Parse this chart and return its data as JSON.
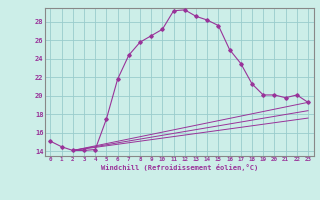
{
  "xlabel": "Windchill (Refroidissement éolien,°C)",
  "bg_color": "#cceee8",
  "line_color": "#993399",
  "grid_color": "#99cccc",
  "spine_color": "#888888",
  "xlim": [
    -0.5,
    23.5
  ],
  "ylim": [
    13.5,
    29.5
  ],
  "yticks": [
    14,
    16,
    18,
    20,
    22,
    24,
    26,
    28
  ],
  "xticks": [
    0,
    1,
    2,
    3,
    4,
    5,
    6,
    7,
    8,
    9,
    10,
    11,
    12,
    13,
    14,
    15,
    16,
    17,
    18,
    19,
    20,
    21,
    22,
    23
  ],
  "main_curve": [
    [
      0,
      15.1
    ],
    [
      1,
      14.5
    ],
    [
      2,
      14.1
    ],
    [
      3,
      14.1
    ],
    [
      4,
      14.2
    ],
    [
      5,
      17.5
    ],
    [
      6,
      21.8
    ],
    [
      7,
      24.4
    ],
    [
      8,
      25.8
    ],
    [
      9,
      26.5
    ],
    [
      10,
      27.2
    ],
    [
      11,
      29.2
    ],
    [
      12,
      29.3
    ],
    [
      13,
      28.6
    ],
    [
      14,
      28.2
    ],
    [
      15,
      27.6
    ],
    [
      16,
      25.0
    ],
    [
      17,
      23.5
    ],
    [
      18,
      21.3
    ],
    [
      19,
      20.1
    ],
    [
      20,
      20.1
    ],
    [
      21,
      19.8
    ],
    [
      22,
      20.1
    ],
    [
      23,
      19.3
    ]
  ],
  "diag_lines": [
    [
      [
        2,
        14.1
      ],
      [
        23,
        19.3
      ]
    ],
    [
      [
        2,
        14.1
      ],
      [
        23,
        18.4
      ]
    ],
    [
      [
        2,
        14.1
      ],
      [
        23,
        17.6
      ]
    ]
  ]
}
